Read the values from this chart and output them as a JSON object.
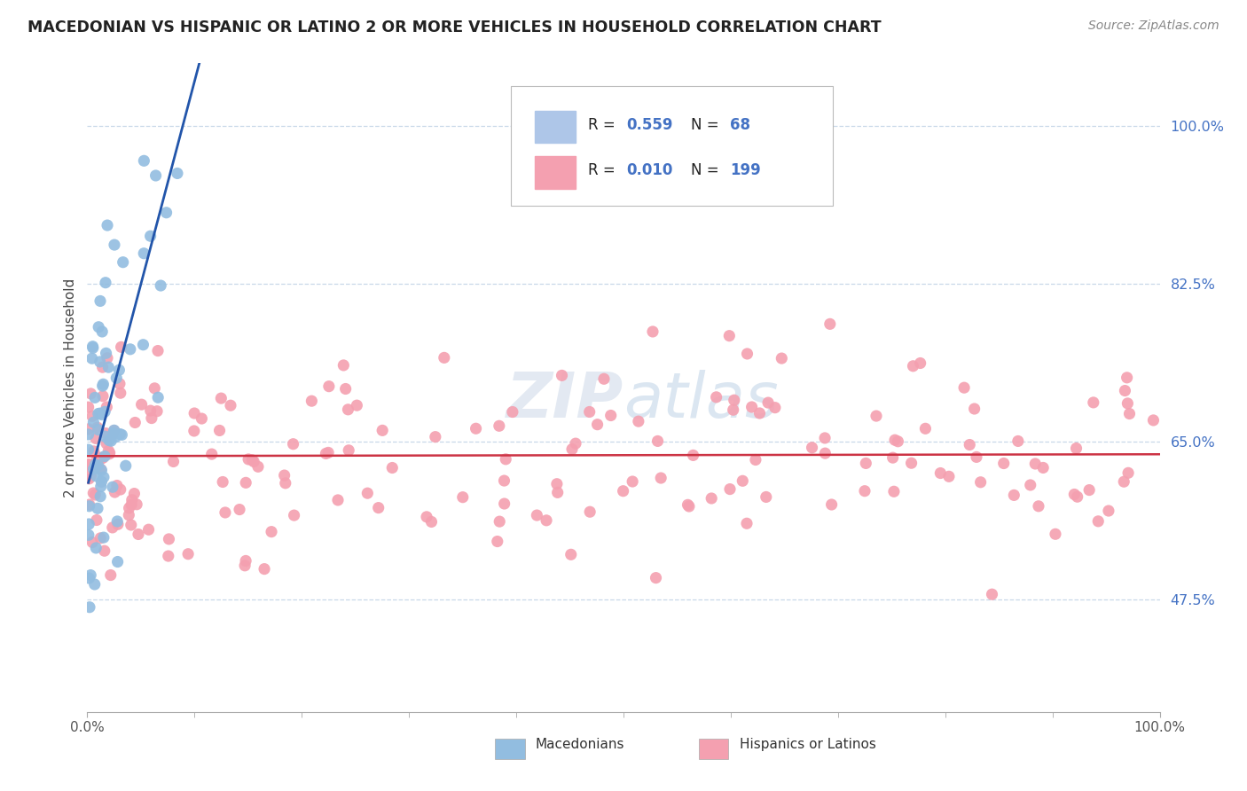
{
  "title": "MACEDONIAN VS HISPANIC OR LATINO 2 OR MORE VEHICLES IN HOUSEHOLD CORRELATION CHART",
  "source_text": "Source: ZipAtlas.com",
  "ylabel": "2 or more Vehicles in Household",
  "ytick_labels": [
    "47.5%",
    "65.0%",
    "82.5%",
    "100.0%"
  ],
  "ytick_values": [
    0.475,
    0.65,
    0.825,
    1.0
  ],
  "xmin": 0.0,
  "xmax": 1.0,
  "ymin": 0.35,
  "ymax": 1.07,
  "mac_dot_color": "#92bde0",
  "mac_dot_edge": "#92bde0",
  "mac_line_color": "#2255aa",
  "hisp_dot_color": "#f4a0b0",
  "hisp_dot_edge": "#f4a0b0",
  "hisp_line_color": "#cc3344",
  "grid_color": "#c8d8e8",
  "background_color": "#ffffff",
  "title_color": "#222222",
  "legend_R_color": "#4472c4",
  "legend_box_color": "#aec6e8",
  "legend_box_color2": "#f4a0b0",
  "watermark_color": "#ccd8e8",
  "mac_R": "0.559",
  "mac_N": "68",
  "hisp_R": "0.010",
  "hisp_N": "199"
}
